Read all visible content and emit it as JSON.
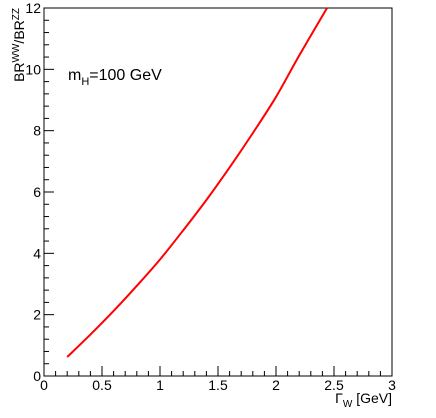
{
  "chart_data": {
    "type": "line",
    "title": "",
    "xlabel": {
      "main": "Γ",
      "sub": "W",
      "unit": " [GeV]"
    },
    "ylabel": {
      "p1": "BR",
      "sup1": "WW",
      "p2": "/BR",
      "sup2": "ZZ"
    },
    "annotation": {
      "main": "m",
      "sub": "H",
      "rest": "=100 GeV"
    },
    "xlim": [
      0,
      3
    ],
    "ylim": [
      0,
      12
    ],
    "x_ticks": [
      "0",
      "0.5",
      "1",
      "1.5",
      "2",
      "2.5",
      "3"
    ],
    "y_ticks": [
      "0",
      "2",
      "4",
      "6",
      "8",
      "10",
      "12"
    ],
    "grid": false,
    "series": [
      {
        "color": "#ff0000",
        "x": [
          0.2,
          0.4,
          0.6,
          0.8,
          1.0,
          1.2,
          1.4,
          1.6,
          1.8,
          2.0,
          2.2,
          2.44
        ],
        "y": [
          0.62,
          1.35,
          2.12,
          2.94,
          3.8,
          4.75,
          5.74,
          6.8,
          7.92,
          9.1,
          10.45,
          12.0
        ]
      }
    ]
  }
}
